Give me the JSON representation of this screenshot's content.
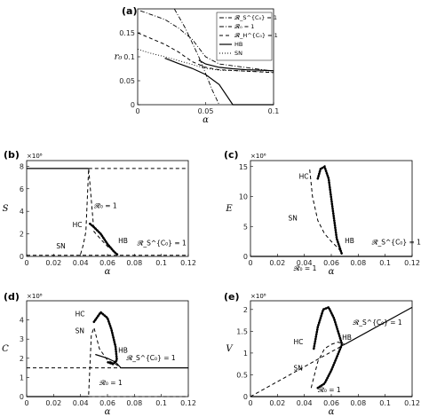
{
  "chart_data": [
    {
      "id": "a",
      "panel_label": "(a)",
      "type": "line",
      "xlabel": "α",
      "ylabel": "r₀",
      "xlim": [
        0,
        0.1
      ],
      "ylim": [
        0,
        0.2
      ],
      "xticks": [
        "0",
        "0.05",
        "0.1"
      ],
      "yticks": [
        "0",
        "0.05",
        "0.1",
        "0.15"
      ],
      "legend": [
        "𝓡_S^{C₀} = 1",
        "𝓡₀ = 1",
        "𝓡_H^{C₀} = 1",
        "HB",
        "SN"
      ],
      "series": [
        {
          "name": "𝓡_S^{C₀} = 1",
          "style": "dashdot",
          "x": [
            0.002,
            0.02,
            0.03,
            0.04,
            0.05,
            0.06,
            0.1
          ],
          "y": [
            0.196,
            0.178,
            0.16,
            0.137,
            0.1,
            0.085,
            0.07
          ]
        },
        {
          "name": "𝓡₀ = 1",
          "style": "dashdot",
          "x": [
            0.027,
            0.035,
            0.045,
            0.05,
            0.055,
            0.06
          ],
          "y": [
            0.2,
            0.16,
            0.1,
            0.065,
            0.03,
            0.0
          ]
        },
        {
          "name": "𝓡_H^{C₀} = 1",
          "style": "dashed",
          "x": [
            0.0,
            0.01,
            0.02,
            0.03,
            0.04,
            0.05,
            0.06,
            0.1
          ],
          "y": [
            0.15,
            0.138,
            0.126,
            0.11,
            0.09,
            0.078,
            0.073,
            0.067
          ]
        },
        {
          "name": "HB",
          "style": "solid",
          "x": [
            0.02,
            0.03,
            0.04,
            0.05,
            0.06,
            0.07,
            0.1
          ],
          "y": [
            0.097,
            0.086,
            0.076,
            0.063,
            0.042,
            0.0,
            0.0
          ]
        },
        {
          "name": "HB-upper",
          "style": "solid",
          "x": [
            0.045,
            0.05,
            0.06,
            0.07,
            0.08,
            0.09,
            0.1
          ],
          "y": [
            0.093,
            0.085,
            0.078,
            0.075,
            0.073,
            0.072,
            0.071
          ]
        },
        {
          "name": "SN",
          "style": "dotted",
          "x": [
            0.0,
            0.01,
            0.02,
            0.03,
            0.04,
            0.05,
            0.06,
            0.1
          ],
          "y": [
            0.116,
            0.107,
            0.1,
            0.092,
            0.084,
            0.076,
            0.072,
            0.068
          ]
        }
      ]
    },
    {
      "id": "b",
      "panel_label": "(b)",
      "type": "line",
      "xlabel": "α",
      "ylabel": "S",
      "multiplier": "×10⁸",
      "xlim": [
        0,
        0.12
      ],
      "ylim": [
        0,
        8.5
      ],
      "xticks": [
        "0",
        "0.02",
        "0.04",
        "0.06",
        "0.08",
        "0.1",
        "0.12"
      ],
      "yticks": [
        "0",
        "2",
        "4",
        "6",
        "8"
      ],
      "annotations": [
        "HC",
        "SN",
        "HB",
        "𝓡₀ = 1",
        "𝓡_S^{C₀} = 1"
      ],
      "series": [
        {
          "name": "stable upper",
          "style": "solid",
          "x": [
            0,
            0.046
          ],
          "y": [
            7.8,
            7.8
          ]
        },
        {
          "name": "unstable upper",
          "style": "dashed",
          "x": [
            0.046,
            0.12
          ],
          "y": [
            7.8,
            7.8
          ]
        },
        {
          "name": "lower zero",
          "style": "dashed",
          "x": [
            0,
            0.12
          ],
          "y": [
            0.1,
            0.1
          ]
        },
        {
          "name": "unstable branch",
          "style": "dashed",
          "x": [
            0.04,
            0.042,
            0.044,
            0.046,
            0.05,
            0.056,
            0.06,
            0.064,
            0.066
          ],
          "y": [
            0.2,
            1.0,
            2.2,
            7.8,
            2.2,
            1.4,
            0.9,
            0.5,
            0.3
          ]
        },
        {
          "name": "limit cycle",
          "style": "dotted-bold",
          "x": [
            0.047,
            0.05,
            0.055,
            0.06,
            0.065,
            0.068
          ],
          "y": [
            2.9,
            2.6,
            2.0,
            1.1,
            0.4,
            0.1
          ]
        }
      ]
    },
    {
      "id": "c",
      "panel_label": "(c)",
      "type": "line",
      "xlabel": "α",
      "ylabel": "E",
      "multiplier": "×10⁶",
      "xlim": [
        0,
        0.12
      ],
      "ylim": [
        0,
        16
      ],
      "xticks": [
        "0",
        "0.02",
        "0.04",
        "0.06",
        "0.08",
        "0.1",
        "0.12"
      ],
      "yticks": [
        "0",
        "5",
        "10",
        "15"
      ],
      "annotations": [
        "HC",
        "SN",
        "HB",
        "𝓡₀ = 1",
        "𝓡_S^{C₀} = 1"
      ],
      "series": [
        {
          "name": "baseline",
          "style": "solid",
          "x": [
            0,
            0.12
          ],
          "y": [
            0,
            0
          ]
        },
        {
          "name": "unstable branch",
          "style": "dashed",
          "x": [
            0.044,
            0.046,
            0.05,
            0.055,
            0.06,
            0.065,
            0.068
          ],
          "y": [
            14.5,
            10,
            6,
            3.8,
            2.5,
            1.4,
            0.6
          ]
        },
        {
          "name": "limit cycle",
          "style": "dotted-bold",
          "x": [
            0.05,
            0.052,
            0.055,
            0.058,
            0.061,
            0.064,
            0.068
          ],
          "y": [
            13,
            14.6,
            15,
            13,
            8,
            3,
            0.3
          ]
        }
      ]
    },
    {
      "id": "d",
      "panel_label": "(d)",
      "type": "line",
      "xlabel": "α",
      "ylabel": "C",
      "multiplier": "×10⁸",
      "xlim": [
        0,
        0.12
      ],
      "ylim": [
        0,
        5
      ],
      "xticks": [
        "0",
        "0.02",
        "0.04",
        "0.06",
        "0.08",
        "0.1",
        "0.12"
      ],
      "yticks": [
        "0",
        "1",
        "2",
        "3",
        "4"
      ],
      "annotations": [
        "HC",
        "SN",
        "HB",
        "𝓡₀ = 1",
        "𝓡_S^{C₀} = 1"
      ],
      "series": [
        {
          "name": "stable lower",
          "style": "solid",
          "x": [
            0,
            0.046
          ],
          "y": [
            0,
            0
          ]
        },
        {
          "name": "dashed lower",
          "style": "dashed",
          "x": [
            0.046,
            0.12
          ],
          "y": [
            0,
            0
          ]
        },
        {
          "name": "dashed upper",
          "style": "dashed",
          "x": [
            0,
            0.07
          ],
          "y": [
            1.5,
            1.5
          ]
        },
        {
          "name": "upper solid",
          "style": "solid",
          "x": [
            0.07,
            0.12
          ],
          "y": [
            1.5,
            1.5
          ]
        },
        {
          "name": "unstable branch",
          "style": "dashed",
          "x": [
            0.046,
            0.048,
            0.05,
            0.054,
            0.06,
            0.066,
            0.07
          ],
          "y": [
            0.1,
            3.2,
            3.6,
            2.5,
            1.9,
            1.7,
            1.5
          ]
        },
        {
          "name": "stable branch",
          "style": "solid",
          "x": [
            0.051,
            0.06,
            0.066,
            0.07
          ],
          "y": [
            2.2,
            2.0,
            1.8,
            1.5
          ]
        },
        {
          "name": "limit cycle",
          "style": "dotted-bold",
          "x": [
            0.05,
            0.055,
            0.06,
            0.063,
            0.066,
            0.067,
            0.064,
            0.06
          ],
          "y": [
            3.9,
            4.4,
            4.1,
            3.5,
            2.6,
            1.9,
            1.7,
            1.8
          ]
        }
      ]
    },
    {
      "id": "e",
      "panel_label": "(e)",
      "type": "line",
      "xlabel": "α",
      "ylabel": "V",
      "multiplier": "×10⁸",
      "xlim": [
        0,
        0.12
      ],
      "ylim": [
        0,
        2.2
      ],
      "xticks": [
        "0",
        "0.02",
        "0.04",
        "0.06",
        "0.08",
        "0.1",
        "0.12"
      ],
      "yticks": [
        "0",
        "0.5",
        "1",
        "1.5",
        "2"
      ],
      "annotations": [
        "HC",
        "SN",
        "HB",
        "𝓡₀ = 1",
        "𝓡_S^{C₀} = 1"
      ],
      "series": [
        {
          "name": "dashed diagonal",
          "style": "dashed",
          "x": [
            0,
            0.07
          ],
          "y": [
            0,
            1.2
          ]
        },
        {
          "name": "solid upper",
          "style": "solid",
          "x": [
            0.07,
            0.12
          ],
          "y": [
            1.2,
            2.05
          ]
        },
        {
          "name": "baseline",
          "style": "solid",
          "x": [
            0,
            0.12
          ],
          "y": [
            0,
            0
          ]
        },
        {
          "name": "unstable branch",
          "style": "dashed",
          "x": [
            0.045,
            0.05,
            0.055,
            0.06,
            0.065,
            0.07
          ],
          "y": [
            0.2,
            0.8,
            1.1,
            1.2,
            1.25,
            1.2
          ]
        },
        {
          "name": "limit cycle",
          "style": "dotted-bold",
          "x": [
            0.047,
            0.05,
            0.054,
            0.058,
            0.062,
            0.066,
            0.068,
            0.064,
            0.06,
            0.055,
            0.05
          ],
          "y": [
            1.1,
            1.6,
            2.0,
            2.05,
            1.8,
            1.4,
            1.2,
            0.9,
            0.6,
            0.3,
            0.2
          ]
        }
      ]
    }
  ]
}
